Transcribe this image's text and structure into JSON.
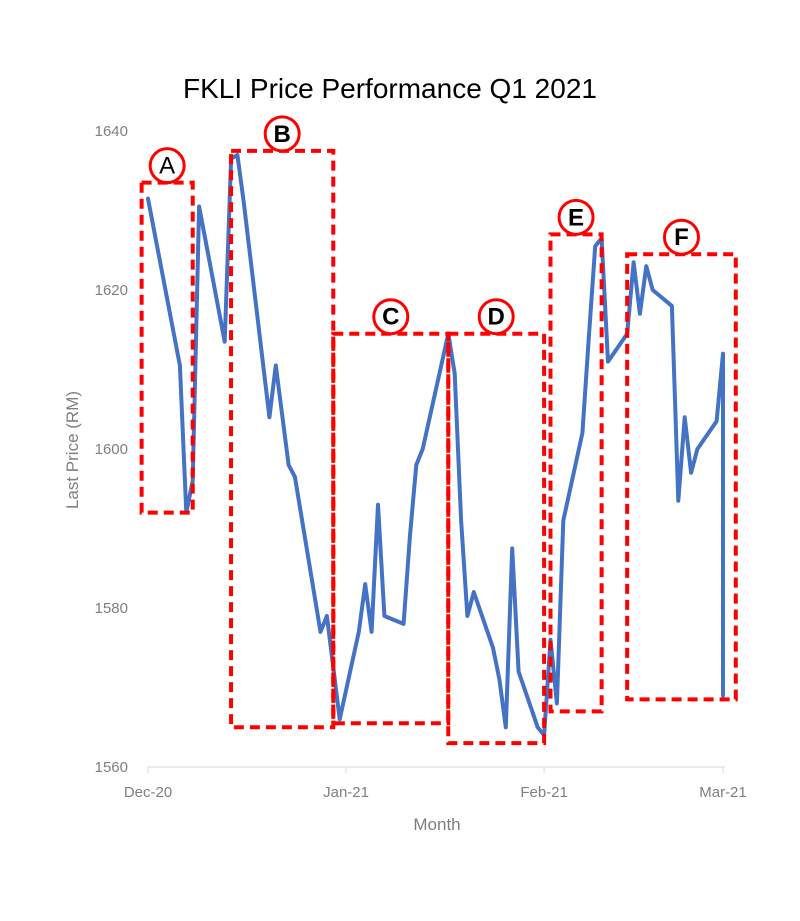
{
  "chart_data": {
    "type": "line",
    "title": "FKLI Price Performance Q1 2021",
    "xlabel": "Month",
    "ylabel": "Last Price (RM)",
    "ylim": [
      1560,
      1640
    ],
    "yticks": [
      1560,
      1580,
      1600,
      1620,
      1640
    ],
    "xticks": [
      {
        "label": "Dec-20",
        "date": "2020-12-01"
      },
      {
        "label": "Jan-21",
        "date": "2021-01-01"
      },
      {
        "label": "Feb-21",
        "date": "2021-02-01"
      },
      {
        "label": "Mar-21",
        "date": "2021-03-01"
      }
    ],
    "xlim": [
      "2020-12-01",
      "2021-03-01"
    ],
    "grid": false,
    "line_color": "#4472c4",
    "series": [
      {
        "points": [
          [
            "2020-12-01",
            1631.5
          ],
          [
            "2020-12-06",
            1610.5
          ],
          [
            "2020-12-07",
            1592.0
          ],
          [
            "2020-12-08",
            1596.0
          ],
          [
            "2020-12-09",
            1630.5
          ],
          [
            "2020-12-13",
            1613.5
          ],
          [
            "2020-12-14",
            1636.5
          ],
          [
            "2020-12-15",
            1637.0
          ],
          [
            "2020-12-16",
            1631.0
          ],
          [
            "2020-12-20",
            1604.0
          ],
          [
            "2020-12-21",
            1610.5
          ],
          [
            "2020-12-23",
            1598.0
          ],
          [
            "2020-12-24",
            1596.5
          ],
          [
            "2020-12-28",
            1577.0
          ],
          [
            "2020-12-29",
            1579.0
          ],
          [
            "2020-12-31",
            1566.0
          ],
          [
            "2021-01-03",
            1577.0
          ],
          [
            "2021-01-04",
            1583.0
          ],
          [
            "2021-01-05",
            1577.0
          ],
          [
            "2021-01-06",
            1593.0
          ],
          [
            "2021-01-07",
            1579.0
          ],
          [
            "2021-01-10",
            1578.0
          ],
          [
            "2021-01-11",
            1589.0
          ],
          [
            "2021-01-12",
            1598.0
          ],
          [
            "2021-01-13",
            1600.0
          ],
          [
            "2021-01-17",
            1614.5
          ],
          [
            "2021-01-18",
            1609.5
          ],
          [
            "2021-01-19",
            1591.0
          ],
          [
            "2021-01-20",
            1579.0
          ],
          [
            "2021-01-21",
            1582.0
          ],
          [
            "2021-01-24",
            1575.0
          ],
          [
            "2021-01-25",
            1571.0
          ],
          [
            "2021-01-26",
            1565.0
          ],
          [
            "2021-01-27",
            1587.5
          ],
          [
            "2021-01-28",
            1572.0
          ],
          [
            "2021-01-31",
            1565.0
          ],
          [
            "2021-02-01",
            1564.0
          ],
          [
            "2021-02-02",
            1576.0
          ],
          [
            "2021-02-03",
            1568.0
          ],
          [
            "2021-02-04",
            1591.0
          ],
          [
            "2021-02-07",
            1602.0
          ],
          [
            "2021-02-08",
            1614.0
          ],
          [
            "2021-02-09",
            1625.5
          ],
          [
            "2021-02-10",
            1626.5
          ],
          [
            "2021-02-11",
            1611.0
          ],
          [
            "2021-02-14",
            1614.5
          ],
          [
            "2021-02-15",
            1623.5
          ],
          [
            "2021-02-16",
            1617.0
          ],
          [
            "2021-02-17",
            1623.0
          ],
          [
            "2021-02-18",
            1620.0
          ],
          [
            "2021-02-21",
            1618.0
          ],
          [
            "2021-02-22",
            1593.5
          ],
          [
            "2021-02-23",
            1604.0
          ],
          [
            "2021-02-24",
            1597.0
          ],
          [
            "2021-02-25",
            1600.0
          ],
          [
            "2021-02-28",
            1603.5
          ],
          [
            "2021-03-01",
            1612.0
          ],
          [
            "2021-03-01",
            1569.0
          ]
        ]
      }
    ],
    "annotations": {
      "box_color": "#ff0000",
      "zones": [
        {
          "label": "A",
          "from": "2020-11-30",
          "to": "2020-12-08",
          "low": 1592.0,
          "high": 1633.5
        },
        {
          "label": "B",
          "from": "2020-12-14",
          "to": "2020-12-30",
          "low": 1565.0,
          "high": 1637.5
        },
        {
          "label": "C",
          "from": "2020-12-30",
          "to": "2021-01-17",
          "low": 1565.5,
          "high": 1614.5
        },
        {
          "label": "D",
          "from": "2021-01-17",
          "to": "2021-02-01",
          "low": 1563.0,
          "high": 1614.5
        },
        {
          "label": "E",
          "from": "2021-02-02",
          "to": "2021-02-10",
          "low": 1567.0,
          "high": 1627.0
        },
        {
          "label": "F",
          "from": "2021-02-14",
          "to": "2021-03-03",
          "low": 1568.5,
          "high": 1624.5
        }
      ]
    }
  }
}
